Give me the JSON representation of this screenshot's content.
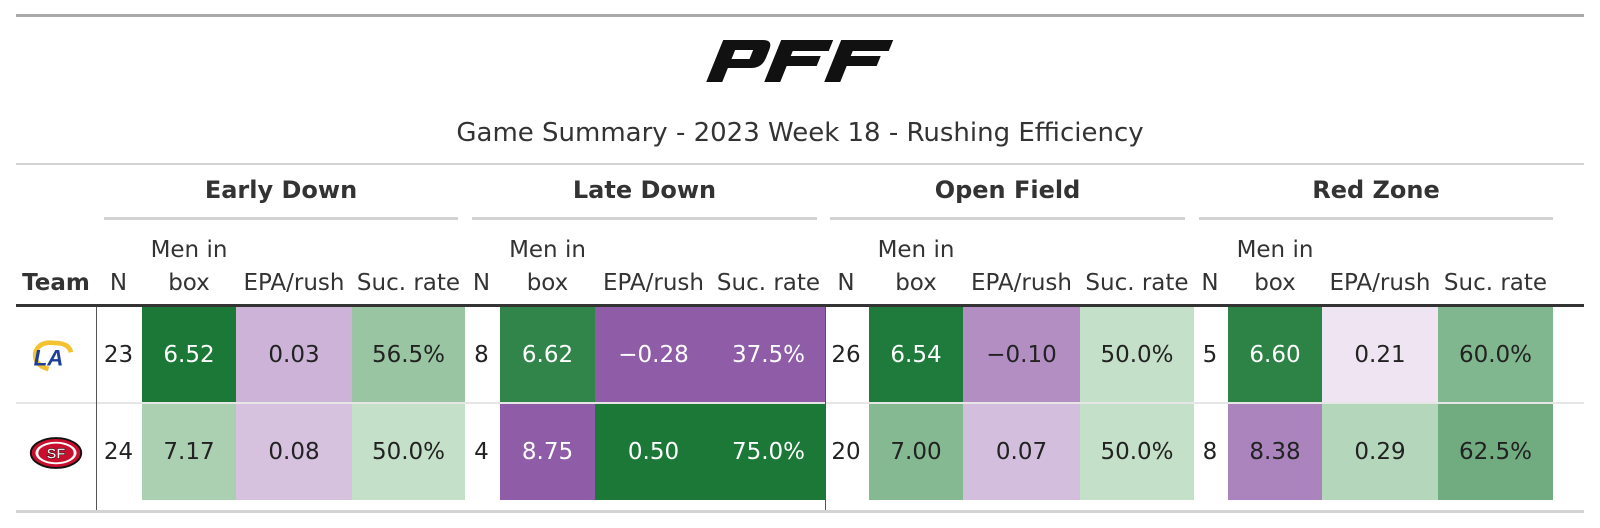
{
  "header": {
    "brand": "PFF",
    "title": "Game Summary - 2023 Week 18 - Rushing Efficiency"
  },
  "colors": {
    "dark_green": "#1b7837",
    "light_green": "#e7f5e5",
    "purple": "#8f5ca8",
    "light_purple": "#f1e8f3"
  },
  "chart_data": {
    "type": "table",
    "title": "Game Summary - 2023 Week 18 - Rushing Efficiency",
    "team_header": "Team",
    "groups": [
      {
        "name": "Early Down",
        "columns": [
          "N",
          "Men in box",
          "EPA/rush",
          "Suc. rate"
        ]
      },
      {
        "name": "Late Down",
        "columns": [
          "N",
          "Men in box",
          "EPA/rush",
          "Suc. rate"
        ]
      },
      {
        "name": "Open Field",
        "columns": [
          "N",
          "Men in box",
          "EPA/rush",
          "Suc. rate"
        ]
      },
      {
        "name": "Red Zone",
        "columns": [
          "N",
          "Men in box",
          "EPA/rush",
          "Suc. rate"
        ]
      }
    ],
    "rows": [
      {
        "team_icon": "rams-logo",
        "cells": [
          {
            "n": "23",
            "box": "6.52",
            "epa": "0.03",
            "suc": "56.5%"
          },
          {
            "n": "8",
            "box": "6.62",
            "epa": "−0.28",
            "suc": "37.5%"
          },
          {
            "n": "26",
            "box": "6.54",
            "epa": "−0.10",
            "suc": "50.0%"
          },
          {
            "n": "5",
            "box": "6.60",
            "epa": "0.21",
            "suc": "60.0%"
          }
        ]
      },
      {
        "team_icon": "49ers-logo",
        "cells": [
          {
            "n": "24",
            "box": "7.17",
            "epa": "0.08",
            "suc": "50.0%"
          },
          {
            "n": "4",
            "box": "8.75",
            "epa": "0.50",
            "suc": "75.0%"
          },
          {
            "n": "20",
            "box": "7.00",
            "epa": "0.07",
            "suc": "50.0%"
          },
          {
            "n": "8",
            "box": "8.38",
            "epa": "0.29",
            "suc": "62.5%"
          }
        ]
      }
    ]
  }
}
